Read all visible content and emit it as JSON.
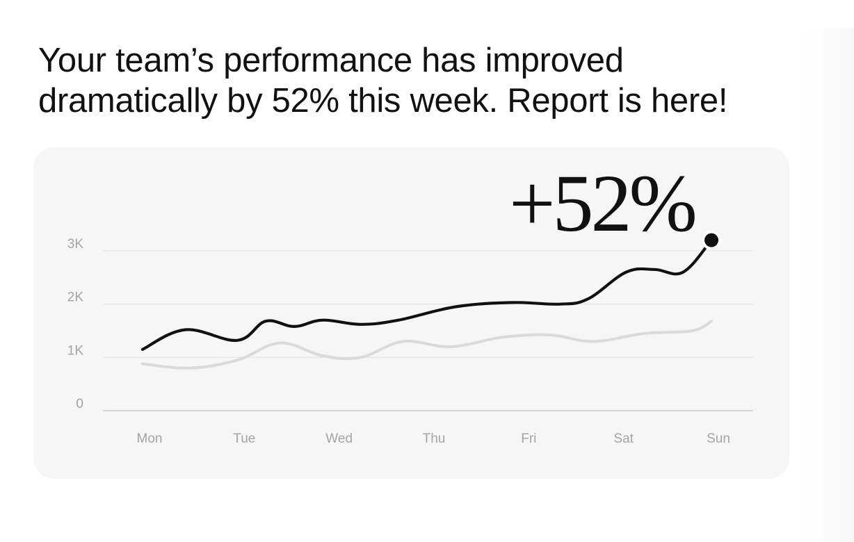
{
  "headline": "Your team’s performance has improved dramatically by 52% this week. Report is here!",
  "badge": "+52%",
  "colors": {
    "primary_line": "#111111",
    "secondary_line": "#dadada",
    "grid": "#e4e4e4",
    "panel": "#f6f6f6"
  },
  "chart_data": {
    "type": "line",
    "categories": [
      "Mon",
      "Tue",
      "Wed",
      "Thu",
      "Fri",
      "Sat",
      "Sun"
    ],
    "y_ticks": [
      "0",
      "1K",
      "2K",
      "3K"
    ],
    "ylim": [
      0,
      3000
    ],
    "grid": true,
    "series": [
      {
        "role": "primary",
        "x": [
          0,
          0.45,
          1,
          1.3,
          1.6,
          1.9,
          2.3,
          2.7,
          3.3,
          3.9,
          4.4,
          4.7,
          5.1,
          5.4,
          5.7,
          6
        ],
        "values": [
          1150,
          1520,
          1320,
          1680,
          1580,
          1700,
          1620,
          1700,
          1950,
          2030,
          2000,
          2100,
          2600,
          2650,
          2600,
          3200
        ]
      },
      {
        "role": "secondary",
        "x": [
          0,
          0.5,
          1,
          1.45,
          1.9,
          2.3,
          2.75,
          3.25,
          3.8,
          4.3,
          4.75,
          5.3,
          5.8,
          6
        ],
        "values": [
          880,
          800,
          950,
          1270,
          1030,
          1000,
          1300,
          1200,
          1380,
          1420,
          1300,
          1450,
          1500,
          1680
        ]
      }
    ]
  }
}
